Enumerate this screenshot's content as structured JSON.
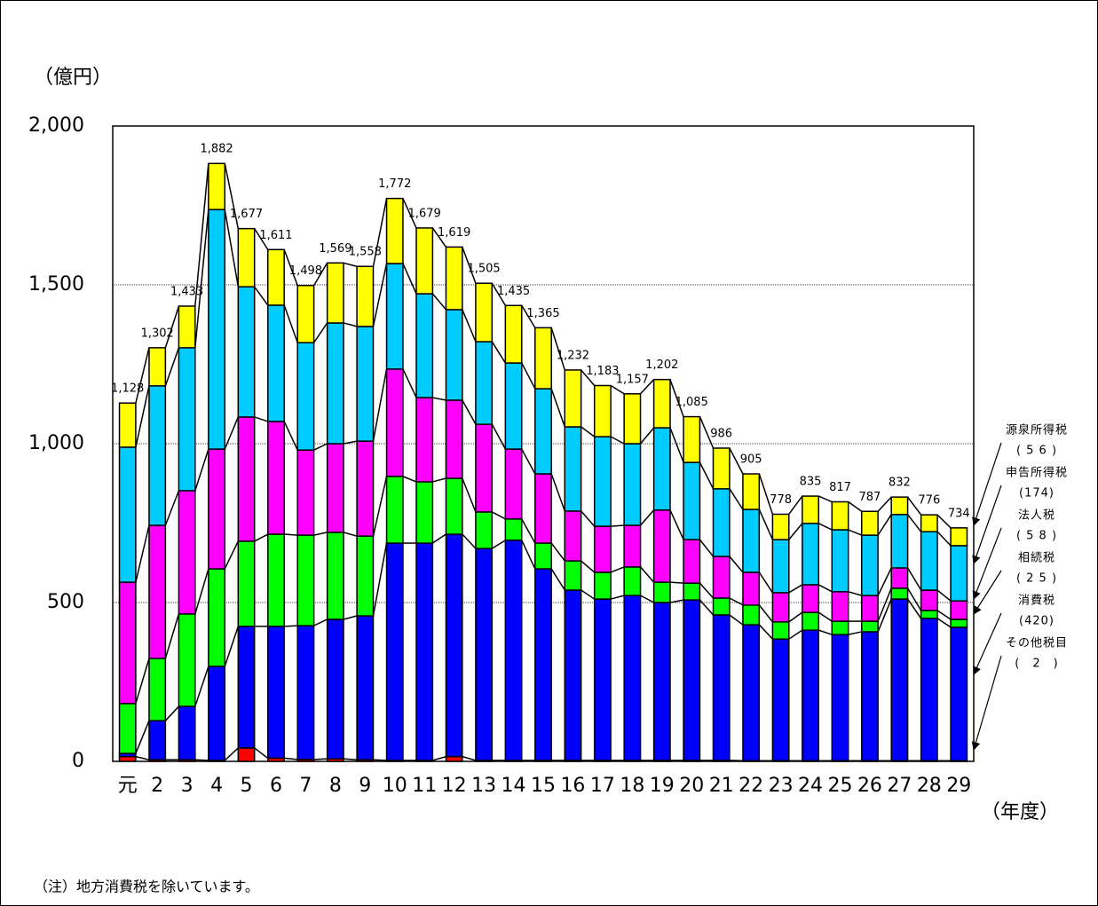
{
  "chart_data": {
    "type": "stacked-bar",
    "y_label": "（億円）",
    "x_label": "（年度）",
    "note": "（注）地方消費税を除いています。",
    "categories": [
      "元",
      "2",
      "3",
      "4",
      "5",
      "6",
      "7",
      "8",
      "9",
      "10",
      "11",
      "12",
      "13",
      "14",
      "15",
      "16",
      "17",
      "18",
      "19",
      "20",
      "21",
      "22",
      "23",
      "24",
      "25",
      "26",
      "27",
      "28",
      "29"
    ],
    "ylim": [
      0,
      2000
    ],
    "yticks": [
      {
        "value": 0,
        "label": "0"
      },
      {
        "value": 500,
        "label": "500"
      },
      {
        "value": 1000,
        "label": "1,000"
      },
      {
        "value": 1500,
        "label": "1,500"
      },
      {
        "value": 2000,
        "label": "2,000"
      }
    ],
    "grid": true,
    "total_labels": [
      "1,128",
      "1,302",
      "1,433",
      "1,882",
      "1,677",
      "1,611",
      "1,498",
      "1,569",
      "1,558",
      "1,772",
      "1,679",
      "1,619",
      "1,505",
      "1,435",
      "1,365",
      "1,232",
      "1,183",
      "1,157",
      "1,202",
      "1,085",
      "986",
      "905",
      "778",
      "835",
      "817",
      "787",
      "832",
      "776",
      "734"
    ],
    "series": [
      {
        "name": "その他税目",
        "side_label": "(　2　)",
        "color": "#ff0000",
        "values": [
          15,
          5,
          5,
          3,
          42,
          10,
          6,
          8,
          5,
          3,
          3,
          15,
          3,
          3,
          3,
          3,
          3,
          3,
          3,
          3,
          3,
          2,
          2,
          2,
          2,
          2,
          2,
          2,
          2
        ]
      },
      {
        "name": "消費税",
        "side_label": "(420)",
        "color": "#0000ff",
        "values": [
          10,
          123,
          168,
          296,
          383,
          415,
          421,
          439,
          453,
          684,
          684,
          700,
          667,
          693,
          603,
          536,
          508,
          519,
          497,
          505,
          458,
          428,
          383,
          411,
          397,
          406,
          509,
          448,
          420
        ]
      },
      {
        "name": "相続税",
        "side_label": "( 2 5 )",
        "color": "#00ff00",
        "values": [
          157,
          196,
          291,
          307,
          268,
          290,
          285,
          274,
          251,
          210,
          193,
          176,
          115,
          67,
          81,
          92,
          84,
          90,
          64,
          53,
          53,
          62,
          54,
          56,
          42,
          33,
          34,
          25,
          25
        ]
      },
      {
        "name": "法人税",
        "side_label": "( 5 8 )",
        "color": "#ff00ff",
        "values": [
          382,
          419,
          388,
          377,
          391,
          355,
          268,
          279,
          299,
          338,
          265,
          246,
          276,
          220,
          218,
          157,
          145,
          131,
          227,
          137,
          131,
          103,
          92,
          87,
          93,
          81,
          64,
          64,
          58
        ]
      },
      {
        "name": "申告所得税",
        "side_label": "(174)",
        "color": "#00ccff",
        "values": [
          425,
          439,
          450,
          754,
          410,
          366,
          338,
          380,
          361,
          332,
          327,
          285,
          260,
          271,
          268,
          265,
          282,
          257,
          259,
          243,
          213,
          198,
          167,
          193,
          195,
          190,
          168,
          184,
          174
        ]
      },
      {
        "name": "源泉所得税",
        "side_label": "( 5 6 )",
        "color": "#ffff00",
        "values": [
          139,
          120,
          131,
          145,
          183,
          175,
          180,
          189,
          189,
          205,
          207,
          197,
          184,
          181,
          192,
          179,
          161,
          157,
          152,
          144,
          128,
          112,
          80,
          86,
          88,
          75,
          55,
          53,
          56
        ]
      }
    ]
  }
}
